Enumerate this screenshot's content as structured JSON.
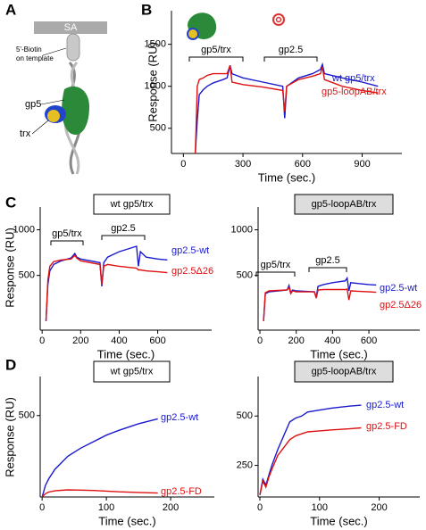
{
  "panel_labels": [
    "A",
    "B",
    "C",
    "D"
  ],
  "diagram": {
    "surface": "SA",
    "biotin": [
      "5'-Biotin",
      "on template"
    ],
    "gp5": "gp5",
    "trx": "trx"
  },
  "chart_data": [
    {
      "type": "line",
      "xlabel": "Time (sec.)",
      "ylabel": "Response (RU)",
      "annotations": [
        "gp5/trx",
        "gp2.5"
      ],
      "x": [
        60,
        70,
        80,
        100,
        120,
        150,
        200,
        220,
        235,
        245,
        300,
        400,
        500,
        510,
        520,
        580,
        650,
        690,
        700,
        710,
        800,
        900,
        980
      ],
      "series": [
        {
          "name": "wt gp5/trx",
          "color": "#1a1acc",
          "values": [
            200,
            600,
            900,
            960,
            1000,
            1040,
            1080,
            1100,
            1250,
            1150,
            1100,
            1050,
            1000,
            620,
            1000,
            1100,
            1150,
            1200,
            1260,
            1150,
            1100,
            1050,
            1000
          ]
        },
        {
          "name": "gp5-loopAB/trx",
          "color": "#dd1111",
          "values": [
            200,
            1000,
            1080,
            1100,
            1130,
            1150,
            1150,
            1150,
            1250,
            1050,
            1020,
            990,
            950,
            700,
            1000,
            1080,
            1120,
            1150,
            1230,
            1080,
            1000,
            950,
            920
          ]
        }
      ],
      "xlim": [
        -60,
        1100
      ],
      "ylim": [
        200,
        1900
      ],
      "xticks": [
        0,
        300,
        600,
        900
      ],
      "yticks": [
        500,
        1000,
        1500
      ]
    },
    {
      "type": "line",
      "title": "wt gp5/trx",
      "xlabel": "Time (sec.)",
      "ylabel": "Response (RU)",
      "annotations": [
        "gp5/trx",
        "gp2.5"
      ],
      "x": [
        20,
        30,
        40,
        60,
        100,
        150,
        170,
        180,
        200,
        300,
        310,
        320,
        340,
        400,
        490,
        500,
        510,
        540,
        600,
        650
      ],
      "series": [
        {
          "name": "gp2.5-wt",
          "color": "#1a1acc",
          "values": [
            0,
            400,
            550,
            620,
            660,
            690,
            740,
            700,
            680,
            640,
            380,
            640,
            700,
            760,
            820,
            600,
            760,
            700,
            680,
            670
          ]
        },
        {
          "name": "gp2.5Δ26",
          "color": "#dd1111",
          "values": [
            0,
            450,
            600,
            650,
            670,
            680,
            720,
            690,
            660,
            620,
            400,
            600,
            620,
            600,
            580,
            560,
            560,
            550,
            540,
            530
          ]
        }
      ],
      "xlim": [
        -10,
        880
      ],
      "ylim": [
        -100,
        1250
      ],
      "xticks": [
        0,
        200,
        400,
        600
      ],
      "yticks": [
        500,
        1000
      ]
    },
    {
      "type": "line",
      "title": "gp5-loopAB/trx",
      "xlabel": "Time (sec.)",
      "annotations": [
        "gp5/trx",
        "gp2.5"
      ],
      "x": [
        20,
        30,
        50,
        100,
        150,
        160,
        170,
        180,
        200,
        300,
        310,
        320,
        350,
        400,
        470,
        480,
        490,
        500,
        550,
        600,
        640
      ],
      "series": [
        {
          "name": "gp2.5-wt",
          "color": "#1a1acc",
          "values": [
            0,
            300,
            320,
            330,
            340,
            390,
            310,
            340,
            330,
            320,
            260,
            380,
            400,
            420,
            440,
            470,
            330,
            420,
            410,
            400,
            395
          ]
        },
        {
          "name": "gp2.5Δ26",
          "color": "#dd1111",
          "values": [
            0,
            310,
            330,
            335,
            340,
            370,
            300,
            330,
            320,
            320,
            250,
            340,
            345,
            345,
            345,
            350,
            230,
            330,
            325,
            320,
            315
          ]
        }
      ],
      "xlim": [
        -10,
        880
      ],
      "ylim": [
        -100,
        1250
      ],
      "xticks": [
        0,
        200,
        400,
        600
      ],
      "yticks": [
        500,
        1000
      ]
    },
    {
      "type": "line",
      "title": "wt gp5/trx",
      "xlabel": "Time (sec.)",
      "ylabel": "Response (RU)",
      "x": [
        0,
        5,
        10,
        20,
        40,
        60,
        80,
        100,
        120,
        150,
        180
      ],
      "series": [
        {
          "name": "gp2.5-wt",
          "color": "#1a1acc",
          "values": [
            0,
            70,
            110,
            170,
            250,
            300,
            340,
            380,
            410,
            450,
            480
          ]
        },
        {
          "name": "gp2.5-FD",
          "color": "#dd1111",
          "values": [
            0,
            20,
            30,
            38,
            44,
            42,
            40,
            36,
            32,
            28,
            24
          ]
        }
      ],
      "xlim": [
        -3,
        268
      ],
      "ylim": [
        0,
        740
      ],
      "xticks": [
        0,
        100,
        200
      ],
      "yticks": [
        500
      ]
    },
    {
      "type": "line",
      "title": "gp5-loopAB/trx",
      "xlabel": "Time (sec.)",
      "x": [
        0,
        5,
        10,
        15,
        20,
        30,
        40,
        50,
        60,
        70,
        80,
        100,
        120,
        150,
        170
      ],
      "series": [
        {
          "name": "gp2.5-wt",
          "color": "#1a1acc",
          "values": [
            100,
            180,
            150,
            200,
            250,
            330,
            400,
            470,
            490,
            500,
            520,
            530,
            540,
            550,
            555
          ]
        },
        {
          "name": "gp2.5-FD",
          "color": "#dd1111",
          "values": [
            100,
            170,
            140,
            190,
            230,
            300,
            340,
            380,
            400,
            410,
            420,
            425,
            430,
            435,
            440
          ]
        }
      ],
      "xlim": [
        -3,
        268
      ],
      "ylim": [
        90,
        700
      ],
      "xticks": [
        0,
        100,
        200
      ],
      "yticks": [
        250,
        500
      ]
    }
  ]
}
